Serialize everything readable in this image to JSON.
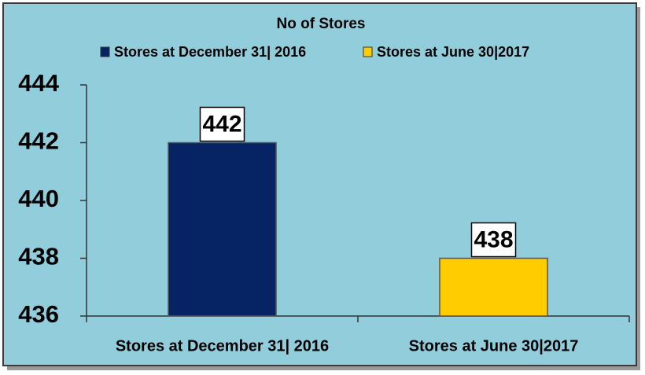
{
  "chart_data": {
    "type": "bar",
    "title": "No of Stores",
    "categories": [
      "Stores at December 31| 2016",
      "Stores at June 30|2017"
    ],
    "series": [
      {
        "name": "Stores at December 31| 2016",
        "color": "#062364",
        "values": [
          442,
          null
        ]
      },
      {
        "name": "Stores at June 30|2017",
        "color": "#ffcc00",
        "values": [
          null,
          438
        ]
      }
    ],
    "ylim": [
      436,
      444
    ],
    "yticks": [
      436,
      438,
      440,
      442,
      444
    ],
    "grid": false,
    "legend": "top"
  }
}
